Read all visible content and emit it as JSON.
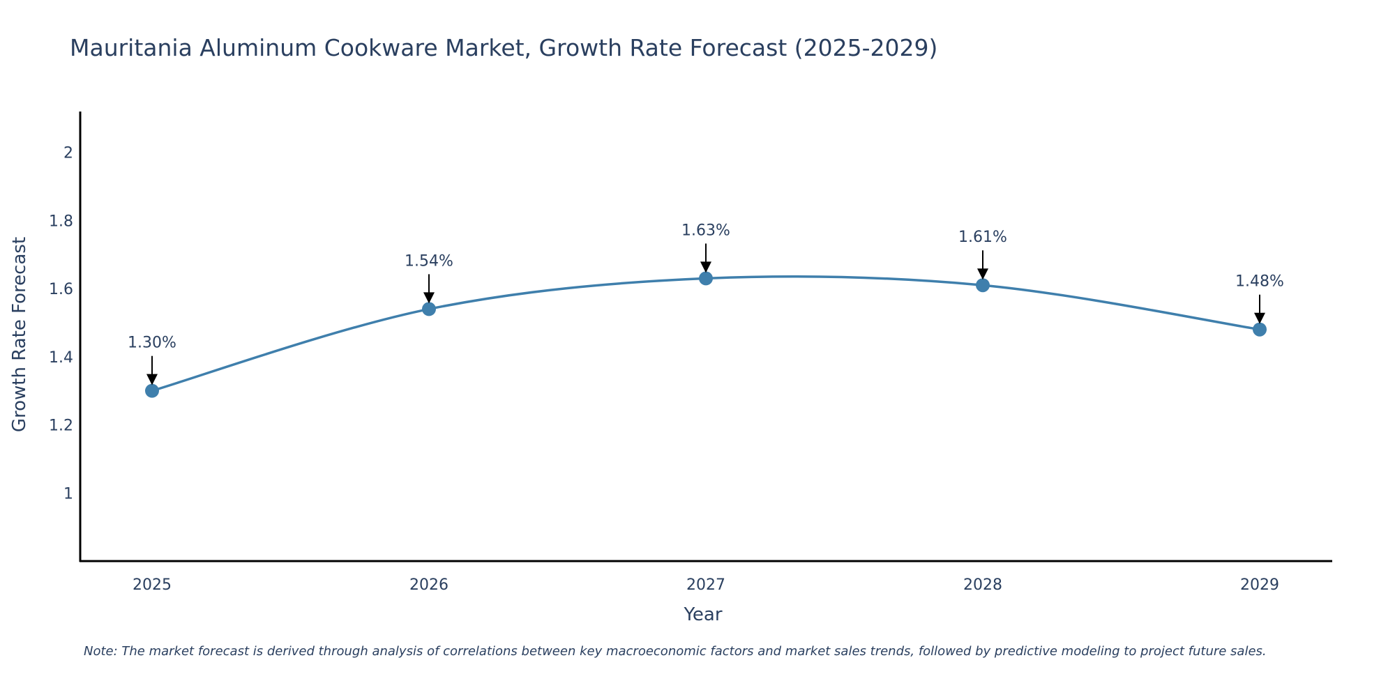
{
  "chart_data": {
    "type": "line",
    "title": "Mauritania Aluminum Cookware Market, Growth Rate Forecast (2025-2029)",
    "xlabel": "Year",
    "ylabel": "Growth Rate Forecast",
    "categories": [
      "2025",
      "2026",
      "2027",
      "2028",
      "2029"
    ],
    "values": [
      1.3,
      1.54,
      1.63,
      1.61,
      1.48
    ],
    "data_labels": [
      "1.30%",
      "1.54%",
      "1.63%",
      "1.61%",
      "1.48%"
    ],
    "y_ticks": [
      1,
      1.2,
      1.4,
      1.6,
      1.8,
      2
    ],
    "y_tick_labels": [
      "1",
      "1.2",
      "1.4",
      "1.6",
      "1.8",
      "2"
    ],
    "ylim": [
      0.8,
      2.12
    ],
    "grid": false,
    "line_shape": "spline",
    "colors": {
      "line": "#3f7fac",
      "marker": "#3f7fac",
      "arrow": "#000000",
      "axis": "#000000",
      "text": "#2a3f5f"
    },
    "note": "Note: The market forecast is derived through analysis of correlations between key macroeconomic factors and market sales trends, followed by predictive modeling to project future sales."
  }
}
